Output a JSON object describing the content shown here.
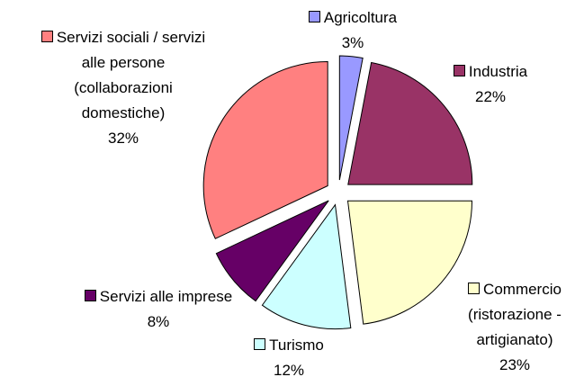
{
  "chart_data": {
    "type": "pie",
    "categories": [
      "Agricoltura",
      "Industria",
      "Commercio\n(ristorazione -\nartigianato)",
      "Turismo",
      "Servizi alle imprese",
      "Servizi sociali / servizi\nalle persone\n(collaborazioni\ndomestiche)"
    ],
    "values": [
      3,
      22,
      23,
      12,
      8,
      32
    ],
    "value_labels": [
      "3%",
      "22%",
      "23%",
      "12%",
      "8%",
      "32%"
    ],
    "colors": [
      "#9999ff",
      "#993366",
      "#ffffcc",
      "#ccffff",
      "#660066",
      "#ff8080"
    ]
  }
}
